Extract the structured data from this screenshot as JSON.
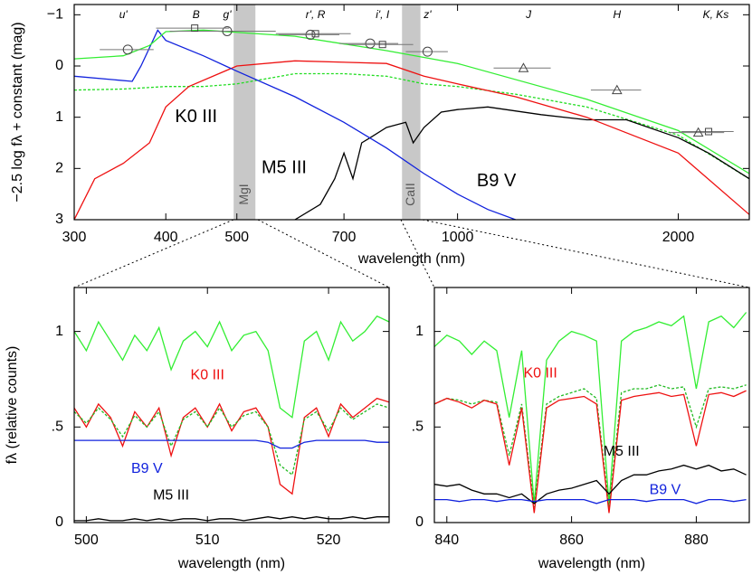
{
  "chart_data": [
    {
      "type": "line",
      "xlabel": "wavelength (nm)",
      "ylabel": "−2.5 log fλ + constant (mag)",
      "xlog": true,
      "invert_y": true,
      "xlim": [
        300,
        2500
      ],
      "ylim": [
        -1.2,
        3
      ],
      "xticks": [
        300,
        400,
        500,
        700,
        1000,
        2000
      ],
      "yticks": [
        {
          "value": -1,
          "label": "−1"
        },
        0,
        1,
        2,
        3
      ],
      "bands": [
        {
          "label": "MgI",
          "range": [
            495,
            530
          ]
        },
        {
          "label": "CaII",
          "range": [
            840,
            890
          ]
        }
      ],
      "filters": [
        {
          "label": "u'",
          "x": 350
        },
        {
          "label": "B",
          "x": 440
        },
        {
          "label": "g'",
          "x": 485
        },
        {
          "label": "r', R",
          "x": 640
        },
        {
          "label": "i', I",
          "x": 790
        },
        {
          "label": "z'",
          "x": 910
        },
        {
          "label": "J",
          "x": 1250
        },
        {
          "label": "H",
          "x": 1650
        },
        {
          "label": "K, Ks",
          "x": 2250
        }
      ],
      "labels": [
        {
          "text": "K0 III",
          "x": 440,
          "y": 1.0,
          "color": "#000000"
        },
        {
          "text": "M5 III",
          "x": 580,
          "y": 2.0,
          "color": "#000000"
        },
        {
          "text": "B9 V",
          "x": 1130,
          "y": 2.25,
          "color": "#000000"
        }
      ],
      "series": [
        {
          "color": "#22dd22",
          "dashed": true,
          "x": [
            300,
            350,
            400,
            450,
            500,
            600,
            700,
            800,
            900,
            1000,
            1200,
            1500,
            2000,
            2500
          ],
          "values": [
            0.47,
            0.45,
            0.4,
            0.4,
            0.35,
            0.15,
            0.15,
            0.2,
            0.35,
            0.4,
            0.55,
            0.8,
            1.35,
            2.2
          ]
        },
        {
          "color": "#000000",
          "dashed": false,
          "x": [
            600,
            650,
            680,
            700,
            720,
            740,
            760,
            800,
            850,
            870,
            900,
            950,
            1000,
            1100,
            1300,
            1500,
            1700,
            2000,
            2200,
            2500
          ],
          "values": [
            3.0,
            2.7,
            2.2,
            1.7,
            2.2,
            1.5,
            1.4,
            1.2,
            1.1,
            1.5,
            1.2,
            0.9,
            0.85,
            0.8,
            0.95,
            1.05,
            1.05,
            1.4,
            1.7,
            2.2
          ]
        },
        {
          "color": "#ee1111",
          "dashed": false,
          "x": [
            300,
            320,
            350,
            380,
            400,
            430,
            500,
            600,
            800,
            900,
            1000,
            1200,
            1500,
            2000,
            2500
          ],
          "values": [
            3.0,
            2.2,
            1.9,
            1.5,
            0.8,
            0.4,
            0.0,
            -0.1,
            -0.05,
            0.2,
            0.35,
            0.6,
            1.0,
            1.7,
            2.9
          ]
        },
        {
          "color": "#1122dd",
          "dashed": false,
          "x": [
            300,
            360,
            370,
            390,
            400,
            450,
            500,
            600,
            700,
            800,
            900,
            1000,
            1100,
            1200
          ],
          "values": [
            0.2,
            0.3,
            0.0,
            -0.7,
            -0.5,
            -0.2,
            0.1,
            0.6,
            1.1,
            1.6,
            2.1,
            2.5,
            2.8,
            3.0
          ]
        },
        {
          "color": "#33ee33",
          "dashed": false,
          "x": [
            300,
            350,
            380,
            400,
            450,
            600,
            800,
            1000,
            1500,
            2000,
            2500
          ],
          "values": [
            -0.14,
            -0.2,
            -0.4,
            -0.67,
            -0.7,
            -0.58,
            -0.3,
            -0.05,
            0.65,
            1.26,
            2.1
          ]
        }
      ],
      "points": [
        {
          "marker": "circle",
          "x": [
            355,
            485,
            630,
            760,
            910
          ],
          "y": [
            -0.32,
            -0.68,
            -0.61,
            -0.44,
            -0.28
          ],
          "xerr": [
            30,
            80,
            60,
            70,
            60
          ]
        },
        {
          "marker": "square",
          "x": [
            438,
            640,
            790,
            2200
          ],
          "y": [
            -0.74,
            -0.63,
            -0.42,
            1.28
          ],
          "xerr": [
            50,
            75,
            80,
            180
          ]
        },
        {
          "marker": "triangle",
          "x": [
            1230,
            1650,
            2130
          ],
          "y": [
            0.04,
            0.47,
            1.3
          ],
          "xerr": [
            110,
            130,
            180
          ]
        }
      ]
    },
    {
      "type": "line",
      "xlabel": "wavelength (nm)",
      "ylabel": "fλ (relative counts)",
      "xlim": [
        499,
        525
      ],
      "ylim": [
        0,
        1.23
      ],
      "xticks": [
        500,
        510,
        520
      ],
      "yticks": [
        0,
        {
          "value": 0.5,
          "label": ".5"
        },
        1
      ],
      "x": [
        499,
        500,
        501,
        502,
        503,
        504,
        505,
        506,
        507,
        508,
        509,
        510,
        511,
        512,
        513,
        514,
        515,
        516,
        517,
        518,
        519,
        520,
        521,
        522,
        523,
        524,
        525
      ],
      "labels": [
        {
          "text": "K0 III",
          "x": 510,
          "y": 0.77,
          "color": "#ee1111"
        },
        {
          "text": "B9 V",
          "x": 505,
          "y": 0.28,
          "color": "#1122dd"
        },
        {
          "text": "M5 III",
          "x": 507,
          "y": 0.14,
          "color": "#000000"
        }
      ],
      "series": [
        {
          "color": "#33ee33",
          "dashed": false,
          "values": [
            1.0,
            0.9,
            1.05,
            0.95,
            0.85,
            0.98,
            0.9,
            1.02,
            0.8,
            0.95,
            1.0,
            0.92,
            1.05,
            0.9,
            0.98,
            1.0,
            0.9,
            0.6,
            0.55,
            0.95,
            1.0,
            0.85,
            1.05,
            0.95,
            1.0,
            1.08,
            1.05
          ]
        },
        {
          "color": "#ee1111",
          "dashed": false,
          "values": [
            0.6,
            0.5,
            0.62,
            0.55,
            0.4,
            0.58,
            0.5,
            0.6,
            0.35,
            0.55,
            0.6,
            0.5,
            0.62,
            0.48,
            0.58,
            0.6,
            0.5,
            0.2,
            0.15,
            0.55,
            0.6,
            0.45,
            0.62,
            0.55,
            0.6,
            0.65,
            0.63
          ]
        },
        {
          "color": "#22bb22",
          "dashed": true,
          "values": [
            0.58,
            0.52,
            0.6,
            0.54,
            0.45,
            0.56,
            0.5,
            0.58,
            0.4,
            0.54,
            0.58,
            0.5,
            0.6,
            0.5,
            0.56,
            0.58,
            0.5,
            0.3,
            0.25,
            0.54,
            0.58,
            0.48,
            0.6,
            0.54,
            0.58,
            0.62,
            0.6
          ]
        },
        {
          "color": "#1122dd",
          "dashed": false,
          "values": [
            0.43,
            0.43,
            0.43,
            0.43,
            0.43,
            0.43,
            0.43,
            0.43,
            0.43,
            0.43,
            0.43,
            0.43,
            0.43,
            0.43,
            0.43,
            0.43,
            0.42,
            0.39,
            0.39,
            0.42,
            0.43,
            0.43,
            0.43,
            0.43,
            0.43,
            0.42,
            0.42
          ]
        },
        {
          "color": "#000000",
          "dashed": false,
          "values": [
            0.01,
            0.01,
            0.02,
            0.01,
            0.01,
            0.02,
            0.01,
            0.02,
            0.01,
            0.02,
            0.02,
            0.01,
            0.02,
            0.02,
            0.01,
            0.02,
            0.03,
            0.02,
            0.03,
            0.02,
            0.03,
            0.02,
            0.02,
            0.03,
            0.02,
            0.03,
            0.03
          ]
        }
      ]
    },
    {
      "type": "line",
      "xlabel": "wavelength (nm)",
      "xlim": [
        838,
        888.5
      ],
      "ylim": [
        0,
        1.23
      ],
      "xticks": [
        840,
        860,
        880
      ],
      "yticks": [
        0,
        {
          "value": 0.5,
          "label": ".5"
        },
        1
      ],
      "x": [
        838,
        840,
        842,
        844,
        846,
        848,
        850,
        852,
        854,
        856,
        858,
        860,
        862,
        864,
        866,
        868,
        870,
        872,
        874,
        876,
        878,
        880,
        882,
        884,
        886,
        888
      ],
      "labels": [
        {
          "text": "K0 III",
          "x": 855,
          "y": 0.78,
          "color": "#ee1111"
        },
        {
          "text": "M5 III",
          "x": 868,
          "y": 0.37,
          "color": "#000000"
        },
        {
          "text": "B9 V",
          "x": 875,
          "y": 0.17,
          "color": "#1122dd"
        }
      ],
      "series": [
        {
          "color": "#33ee33",
          "dashed": false,
          "values": [
            0.92,
            0.98,
            0.95,
            0.88,
            0.95,
            0.9,
            0.55,
            0.9,
            0.1,
            0.85,
            0.95,
            1.0,
            0.98,
            0.95,
            0.1,
            0.95,
            1.0,
            1.02,
            1.05,
            1.03,
            1.08,
            0.7,
            1.05,
            1.08,
            1.02,
            1.1
          ]
        },
        {
          "color": "#22bb22",
          "dashed": true,
          "values": [
            0.62,
            0.65,
            0.64,
            0.62,
            0.64,
            0.63,
            0.35,
            0.62,
            0.08,
            0.62,
            0.66,
            0.68,
            0.7,
            0.65,
            0.08,
            0.68,
            0.7,
            0.7,
            0.72,
            0.7,
            0.71,
            0.5,
            0.7,
            0.71,
            0.7,
            0.72
          ]
        },
        {
          "color": "#ee1111",
          "dashed": false,
          "values": [
            0.62,
            0.65,
            0.63,
            0.6,
            0.64,
            0.62,
            0.3,
            0.6,
            0.05,
            0.6,
            0.64,
            0.65,
            0.66,
            0.62,
            0.05,
            0.64,
            0.66,
            0.67,
            0.68,
            0.66,
            0.67,
            0.4,
            0.67,
            0.68,
            0.66,
            0.69
          ]
        },
        {
          "color": "#000000",
          "dashed": false,
          "values": [
            0.2,
            0.19,
            0.2,
            0.17,
            0.15,
            0.15,
            0.13,
            0.15,
            0.1,
            0.15,
            0.17,
            0.18,
            0.2,
            0.22,
            0.15,
            0.22,
            0.25,
            0.25,
            0.27,
            0.28,
            0.3,
            0.28,
            0.3,
            0.27,
            0.28,
            0.25
          ]
        },
        {
          "color": "#1122dd",
          "dashed": false,
          "values": [
            0.12,
            0.12,
            0.11,
            0.12,
            0.12,
            0.11,
            0.12,
            0.12,
            0.11,
            0.12,
            0.12,
            0.12,
            0.12,
            0.1,
            0.12,
            0.12,
            0.12,
            0.11,
            0.12,
            0.12,
            0.12,
            0.1,
            0.12,
            0.12,
            0.11,
            0.12
          ]
        }
      ]
    }
  ]
}
